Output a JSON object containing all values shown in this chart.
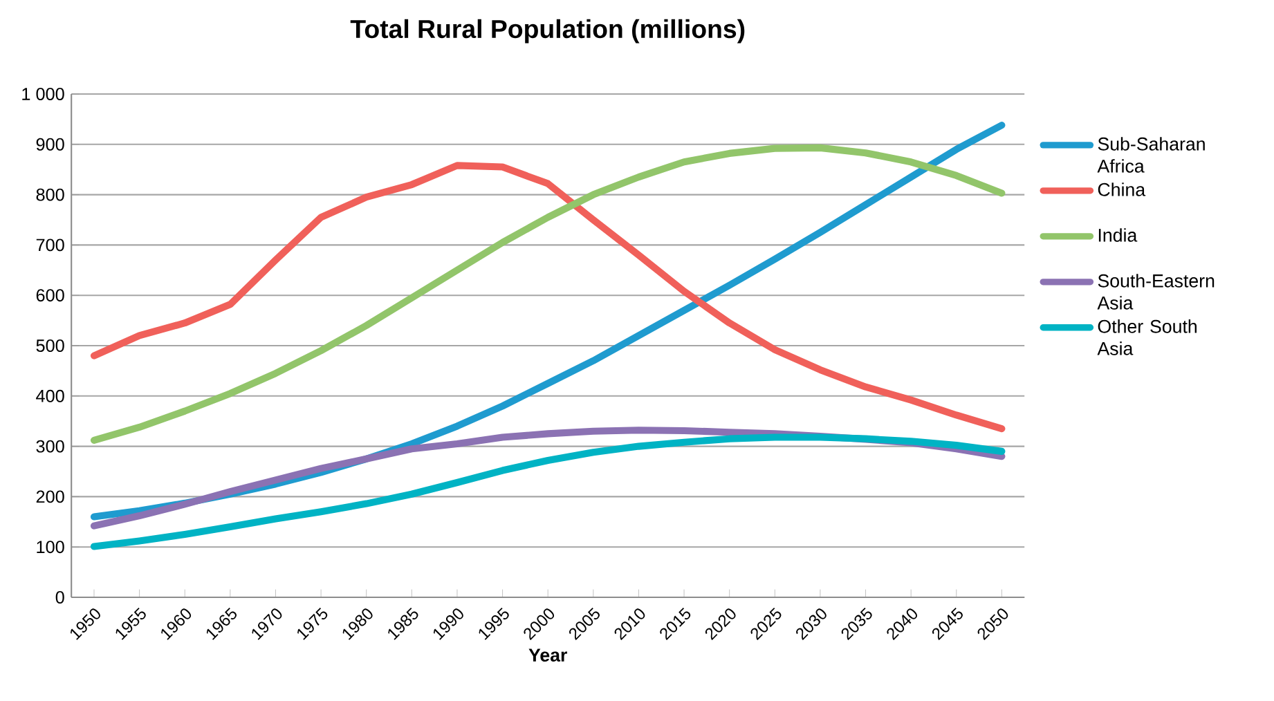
{
  "chart_data": {
    "type": "line",
    "title": "Total Rural Population (millions)",
    "xlabel": "Year",
    "categories": [
      "1950",
      "1955",
      "1960",
      "1965",
      "1970",
      "1975",
      "1980",
      "1985",
      "1990",
      "1995",
      "2000",
      "2005",
      "2010",
      "2015",
      "2020",
      "2025",
      "2030",
      "2035",
      "2040",
      "2045",
      "2050"
    ],
    "ylim": [
      0,
      1000
    ],
    "yticks": [
      0,
      100,
      200,
      300,
      400,
      500,
      600,
      700,
      800,
      900,
      {
        "value": 1000,
        "label": "1 000"
      }
    ],
    "grid": "y",
    "legend": "right",
    "series": [
      {
        "name": "Sub-Saharan Africa",
        "color": "#1f9bcf",
        "values": [
          160,
          172,
          187,
          205,
          225,
          248,
          275,
          305,
          340,
          380,
          425,
          470,
          520,
          570,
          620,
          672,
          725,
          780,
          835,
          890,
          938
        ]
      },
      {
        "name": "China",
        "color": "#f0605a",
        "values": [
          480,
          520,
          545,
          582,
          670,
          755,
          795,
          820,
          858,
          855,
          822,
          750,
          680,
          608,
          545,
          492,
          452,
          418,
          392,
          362,
          335
        ]
      },
      {
        "name": "India",
        "color": "#92c56a",
        "values": [
          312,
          338,
          370,
          405,
          445,
          490,
          540,
          595,
          650,
          705,
          755,
          800,
          835,
          865,
          882,
          892,
          893,
          883,
          865,
          838,
          803
        ]
      },
      {
        "name": "South-Eastern Asia",
        "color": "#8b72b3",
        "values": [
          142,
          162,
          185,
          210,
          233,
          256,
          275,
          295,
          305,
          318,
          325,
          330,
          332,
          331,
          328,
          325,
          320,
          314,
          307,
          295,
          280
        ]
      },
      {
        "name": "Other South Asia",
        "color": "#00b3c4",
        "values": [
          101,
          112,
          125,
          140,
          156,
          170,
          186,
          205,
          228,
          252,
          272,
          288,
          300,
          308,
          315,
          318,
          318,
          315,
          310,
          302,
          290
        ]
      }
    ]
  }
}
